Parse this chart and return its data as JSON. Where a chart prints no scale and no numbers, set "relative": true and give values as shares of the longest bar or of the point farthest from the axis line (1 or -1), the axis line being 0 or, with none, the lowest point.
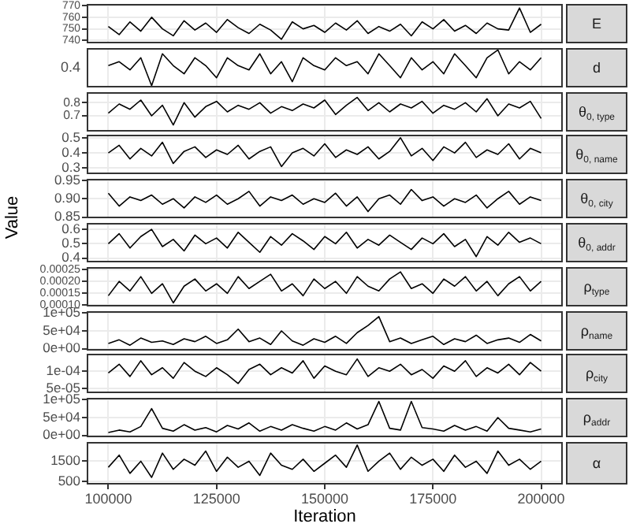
{
  "chart_data": [
    {
      "type": "line",
      "y2label": "E",
      "color": "#000000",
      "x": [
        100000,
        102500,
        105000,
        107500,
        110000,
        112500,
        115000,
        117500,
        120000,
        122500,
        125000,
        127500,
        130000,
        132500,
        135000,
        137500,
        140000,
        142500,
        145000,
        147500,
        150000,
        152500,
        155000,
        157500,
        160000,
        162500,
        165000,
        167500,
        170000,
        172500,
        175000,
        177500,
        180000,
        182500,
        185000,
        187500,
        190000,
        192500,
        195000,
        197500,
        200000
      ],
      "values": [
        752,
        745,
        756,
        748,
        760,
        750,
        744,
        757,
        749,
        755,
        747,
        758,
        751,
        746,
        754,
        749,
        741,
        756,
        750,
        753,
        747,
        755,
        749,
        757,
        746,
        752,
        748,
        754,
        744,
        756,
        750,
        758,
        748,
        753,
        746,
        755,
        750,
        749,
        768,
        747,
        754
      ],
      "xlim": [
        95000,
        205000
      ],
      "xticks": [
        100000,
        125000,
        150000,
        175000,
        200000
      ],
      "ylim": [
        737.5,
        771.5
      ],
      "yticks": [
        740,
        750,
        760,
        770
      ],
      "grid": true,
      "tick_labels": "y"
    },
    {
      "type": "line",
      "y2label": "d",
      "color": "#000000",
      "x": [
        100000,
        102500,
        105000,
        107500,
        110000,
        112500,
        115000,
        117500,
        120000,
        122500,
        125000,
        127500,
        130000,
        132500,
        135000,
        137500,
        140000,
        142500,
        145000,
        147500,
        150000,
        152500,
        155000,
        157500,
        160000,
        162500,
        165000,
        167500,
        170000,
        172500,
        175000,
        177500,
        180000,
        182500,
        185000,
        187500,
        190000,
        192500,
        195000,
        197500,
        200000
      ],
      "values": [
        0.56,
        0.67,
        0.44,
        0.78,
        0,
        0.89,
        0.56,
        0.33,
        0.78,
        0.56,
        0.22,
        0.78,
        0.56,
        0.44,
        0.89,
        0.33,
        0.67,
        0.11,
        0.78,
        0.56,
        0.44,
        0.78,
        0.56,
        0.67,
        0.33,
        0.89,
        0.56,
        0.22,
        0.78,
        0.44,
        0.67,
        0.33,
        0.89,
        0.56,
        0.22,
        0.78,
        1,
        0.33,
        0.67,
        0.44,
        0.78
      ],
      "relative": true,
      "annotations": [
        "0.4"
      ],
      "xlim": [
        95000,
        205000
      ],
      "xticks": [
        100000,
        125000,
        150000,
        175000,
        200000
      ],
      "grid": true,
      "tick_labels": "y"
    },
    {
      "type": "line",
      "y2label": "θ$_{0, type}$",
      "color": "#000000",
      "x": [
        100000,
        102500,
        105000,
        107500,
        110000,
        112500,
        115000,
        117500,
        120000,
        122500,
        125000,
        127500,
        130000,
        132500,
        135000,
        137500,
        140000,
        142500,
        145000,
        147500,
        150000,
        152500,
        155000,
        157500,
        160000,
        162500,
        165000,
        167500,
        170000,
        172500,
        175000,
        177500,
        180000,
        182500,
        185000,
        187500,
        190000,
        192500,
        195000,
        197500,
        200000
      ],
      "values": [
        0.72,
        0.79,
        0.75,
        0.82,
        0.7,
        0.78,
        0.63,
        0.8,
        0.69,
        0.77,
        0.81,
        0.73,
        0.78,
        0.75,
        0.8,
        0.72,
        0.77,
        0.74,
        0.79,
        0.76,
        0.82,
        0.71,
        0.78,
        0.84,
        0.74,
        0.8,
        0.73,
        0.79,
        0.76,
        0.81,
        0.72,
        0.78,
        0.75,
        0.8,
        0.73,
        0.83,
        0.7,
        0.79,
        0.76,
        0.81,
        0.68
      ],
      "xlim": [
        95000,
        205000
      ],
      "xticks": [
        100000,
        125000,
        150000,
        175000,
        200000
      ],
      "ylim": [
        0.58,
        0.88
      ],
      "yticks": [
        0.7,
        0.8
      ],
      "grid": true,
      "tick_labels": "y"
    },
    {
      "type": "line",
      "y2label": "θ$_{0, name}$",
      "color": "#000000",
      "x": [
        100000,
        102500,
        105000,
        107500,
        110000,
        112500,
        115000,
        117500,
        120000,
        122500,
        125000,
        127500,
        130000,
        132500,
        135000,
        137500,
        140000,
        142500,
        145000,
        147500,
        150000,
        152500,
        155000,
        157500,
        160000,
        162500,
        165000,
        167500,
        170000,
        172500,
        175000,
        177500,
        180000,
        182500,
        185000,
        187500,
        190000,
        192500,
        195000,
        197500,
        200000
      ],
      "values": [
        0.4,
        0.45,
        0.36,
        0.43,
        0.38,
        0.47,
        0.33,
        0.41,
        0.44,
        0.37,
        0.42,
        0.39,
        0.45,
        0.36,
        0.41,
        0.44,
        0.31,
        0.4,
        0.43,
        0.38,
        0.46,
        0.37,
        0.42,
        0.39,
        0.44,
        0.36,
        0.41,
        0.5,
        0.38,
        0.43,
        0.35,
        0.44,
        0.4,
        0.47,
        0.37,
        0.42,
        0.39,
        0.46,
        0.36,
        0.43,
        0.4
      ],
      "xlim": [
        95000,
        205000
      ],
      "xticks": [
        100000,
        125000,
        150000,
        175000,
        200000
      ],
      "ylim": [
        0.26,
        0.52
      ],
      "yticks": [
        0.3,
        0.4,
        0.5
      ],
      "grid": true,
      "tick_labels": "y"
    },
    {
      "type": "line",
      "y2label": "θ$_{0, city}$",
      "color": "#000000",
      "x": [
        100000,
        102500,
        105000,
        107500,
        110000,
        112500,
        115000,
        117500,
        120000,
        122500,
        125000,
        127500,
        130000,
        132500,
        135000,
        137500,
        140000,
        142500,
        145000,
        147500,
        150000,
        152500,
        155000,
        157500,
        160000,
        162500,
        165000,
        167500,
        170000,
        172500,
        175000,
        177500,
        180000,
        182500,
        185000,
        187500,
        190000,
        192500,
        195000,
        197500,
        200000
      ],
      "values": [
        0.915,
        0.88,
        0.905,
        0.895,
        0.91,
        0.885,
        0.9,
        0.875,
        0.905,
        0.89,
        0.91,
        0.885,
        0.9,
        0.92,
        0.88,
        0.905,
        0.895,
        0.91,
        0.885,
        0.9,
        0.89,
        0.915,
        0.88,
        0.905,
        0.865,
        0.9,
        0.91,
        0.885,
        0.925,
        0.895,
        0.905,
        0.88,
        0.9,
        0.89,
        0.91,
        0.875,
        0.9,
        0.92,
        0.885,
        0.905,
        0.895
      ],
      "xlim": [
        95000,
        205000
      ],
      "xticks": [
        100000,
        125000,
        150000,
        175000,
        200000
      ],
      "ylim": [
        0.847,
        0.954
      ],
      "yticks": [
        {
          "value": 0.85,
          "label": "0.85"
        },
        {
          "value": 0.9,
          "label": "0.90"
        },
        {
          "value": 0.95,
          "label": "0.95"
        }
      ],
      "grid": true,
      "tick_labels": "y"
    },
    {
      "type": "line",
      "y2label": "θ$_{0, addr}$",
      "ylabel": "Value",
      "color": "#000000",
      "x": [
        100000,
        102500,
        105000,
        107500,
        110000,
        112500,
        115000,
        117500,
        120000,
        122500,
        125000,
        127500,
        130000,
        132500,
        135000,
        137500,
        140000,
        142500,
        145000,
        147500,
        150000,
        152500,
        155000,
        157500,
        160000,
        162500,
        165000,
        167500,
        170000,
        172500,
        175000,
        177500,
        180000,
        182500,
        185000,
        187500,
        190000,
        192500,
        195000,
        197500,
        200000
      ],
      "values": [
        0.5,
        0.57,
        0.47,
        0.55,
        0.6,
        0.48,
        0.53,
        0.45,
        0.56,
        0.5,
        0.54,
        0.47,
        0.58,
        0.51,
        0.44,
        0.55,
        0.49,
        0.57,
        0.52,
        0.46,
        0.55,
        0.5,
        0.58,
        0.47,
        0.53,
        0.49,
        0.56,
        0.51,
        0.46,
        0.54,
        0.5,
        0.57,
        0.48,
        0.53,
        0.41,
        0.55,
        0.49,
        0.58,
        0.51,
        0.54,
        0.5
      ],
      "xlim": [
        95000,
        205000
      ],
      "xticks": [
        100000,
        125000,
        150000,
        175000,
        200000
      ],
      "ylim": [
        0.37,
        0.645
      ],
      "yticks": [
        0.4,
        0.5,
        0.6
      ],
      "grid": true,
      "tick_labels": "y"
    },
    {
      "type": "line",
      "y2label": "ρ$_{type}$",
      "color": "#000000",
      "x": [
        100000,
        102500,
        105000,
        107500,
        110000,
        112500,
        115000,
        117500,
        120000,
        122500,
        125000,
        127500,
        130000,
        132500,
        135000,
        137500,
        140000,
        142500,
        145000,
        147500,
        150000,
        152500,
        155000,
        157500,
        160000,
        162500,
        165000,
        167500,
        170000,
        172500,
        175000,
        177500,
        180000,
        182500,
        185000,
        187500,
        190000,
        192500,
        195000,
        197500,
        200000
      ],
      "values": [
        0.00014,
        0.0002,
        0.00016,
        0.00022,
        0.00015,
        0.00019,
        0.00011,
        0.00018,
        0.00021,
        0.00016,
        0.00019,
        0.00015,
        0.00022,
        0.00017,
        0.0002,
        0.00023,
        0.00016,
        0.00019,
        0.00014,
        0.00021,
        0.00017,
        0.0002,
        0.00015,
        0.00022,
        0.00018,
        0.00016,
        0.00021,
        0.00024,
        0.00017,
        0.00019,
        0.00015,
        0.00021,
        0.00018,
        0.00022,
        0.00016,
        0.0002,
        0.00014,
        0.00019,
        0.00022,
        0.00016,
        0.0002
      ],
      "xlim": [
        95000,
        205000
      ],
      "xticks": [
        100000,
        125000,
        150000,
        175000,
        200000
      ],
      "ylim": [
        9.5e-05,
        0.00026
      ],
      "yticks": [
        {
          "value": 0.0001,
          "label": "0.00010"
        },
        {
          "value": 0.00015,
          "label": "0.00015"
        },
        {
          "value": 0.0002,
          "label": "0.00020"
        },
        {
          "value": 0.00025,
          "label": "0.00025"
        }
      ],
      "grid": true,
      "tick_labels": "y"
    },
    {
      "type": "line",
      "y2label": "ρ$_{name}$",
      "color": "#000000",
      "x": [
        100000,
        102500,
        105000,
        107500,
        110000,
        112500,
        115000,
        117500,
        120000,
        122500,
        125000,
        127500,
        130000,
        132500,
        135000,
        137500,
        140000,
        142500,
        145000,
        147500,
        150000,
        152500,
        155000,
        157500,
        160000,
        162500,
        165000,
        167500,
        170000,
        172500,
        175000,
        177500,
        180000,
        182500,
        185000,
        187500,
        190000,
        192500,
        195000,
        197500,
        200000
      ],
      "values": [
        15000,
        25000,
        10000,
        30000,
        18000,
        22000,
        12000,
        28000,
        20000,
        35000,
        15000,
        25000,
        55000,
        20000,
        30000,
        12000,
        50000,
        22000,
        10000,
        28000,
        18000,
        35000,
        15000,
        45000,
        65000,
        90000,
        20000,
        30000,
        15000,
        25000,
        35000,
        12000,
        28000,
        20000,
        38000,
        15000,
        25000,
        30000,
        18000,
        40000,
        22000
      ],
      "xlim": [
        95000,
        205000
      ],
      "xticks": [
        100000,
        125000,
        150000,
        175000,
        200000
      ],
      "ylim": [
        -5000,
        105000
      ],
      "yticks": [
        {
          "value": 0,
          "label": "0e+00"
        },
        {
          "value": 50000,
          "label": "5e+04"
        },
        {
          "value": 100000,
          "label": "1e+05"
        }
      ],
      "grid": true,
      "tick_labels": "y"
    },
    {
      "type": "line",
      "y2label": "ρ$_{city}$",
      "color": "#000000",
      "x": [
        100000,
        102500,
        105000,
        107500,
        110000,
        112500,
        115000,
        117500,
        120000,
        122500,
        125000,
        127500,
        130000,
        132500,
        135000,
        137500,
        140000,
        142500,
        145000,
        147500,
        150000,
        152500,
        155000,
        157500,
        160000,
        162500,
        165000,
        167500,
        170000,
        172500,
        175000,
        177500,
        180000,
        182500,
        185000,
        187500,
        190000,
        192500,
        195000,
        197500,
        200000
      ],
      "values": [
        9.5e-05,
        0.00012,
        8.5e-05,
        0.00013,
        9e-05,
        0.00011,
        8e-05,
        0.000125,
        0.0001,
        8.5e-05,
        0.00011,
        9e-05,
        6.5e-05,
        0.000105,
        0.00012,
        9e-05,
        0.00011,
        9.5e-05,
        0.00013,
        8e-05,
        0.000115,
        0.0001,
        9e-05,
        0.000135,
        8.5e-05,
        0.00011,
        0.0001,
        0.00012,
        9e-05,
        0.000105,
        8e-05,
        0.000115,
        0.0001,
        0.00013,
        8.5e-05,
        0.00011,
        9.5e-05,
        0.00012,
        9e-05,
        0.000125,
        0.0001
      ],
      "xlim": [
        95000,
        205000
      ],
      "xticks": [
        100000,
        125000,
        150000,
        175000,
        200000
      ],
      "ylim": [
        3.75e-05,
        0.00015
      ],
      "yticks": [
        {
          "value": 5e-05,
          "label": "5e-05"
        },
        {
          "value": 0.0001,
          "label": "1e-04"
        }
      ],
      "grid": true,
      "tick_labels": "y"
    },
    {
      "type": "line",
      "y2label": "ρ$_{addr}$",
      "color": "#000000",
      "x": [
        100000,
        102500,
        105000,
        107500,
        110000,
        112500,
        115000,
        117500,
        120000,
        122500,
        125000,
        127500,
        130000,
        132500,
        135000,
        137500,
        140000,
        142500,
        145000,
        147500,
        150000,
        152500,
        155000,
        157500,
        160000,
        162500,
        165000,
        167500,
        170000,
        172500,
        175000,
        177500,
        180000,
        182500,
        185000,
        187500,
        190000,
        192500,
        195000,
        197500,
        200000
      ],
      "values": [
        8000,
        15000,
        10000,
        25000,
        75000,
        20000,
        12000,
        30000,
        15000,
        22000,
        10000,
        28000,
        18000,
        35000,
        12000,
        25000,
        15000,
        30000,
        20000,
        12000,
        25000,
        15000,
        35000,
        18000,
        30000,
        95000,
        20000,
        15000,
        95000,
        22000,
        18000,
        12000,
        28000,
        15000,
        25000,
        12000,
        50000,
        20000,
        15000,
        10000,
        18000
      ],
      "xlim": [
        95000,
        205000
      ],
      "xticks": [
        100000,
        125000,
        150000,
        175000,
        200000
      ],
      "ylim": [
        -5000,
        105000
      ],
      "yticks": [
        {
          "value": 0,
          "label": "0e+00"
        },
        {
          "value": 50000,
          "label": "5e+04"
        },
        {
          "value": 100000,
          "label": "1e+05"
        }
      ],
      "grid": true,
      "tick_labels": "y"
    },
    {
      "type": "line",
      "y2label": "α",
      "xlabel": "Iteration",
      "color": "#000000",
      "x": [
        100000,
        102500,
        105000,
        107500,
        110000,
        112500,
        115000,
        117500,
        120000,
        122500,
        125000,
        127500,
        130000,
        132500,
        135000,
        137500,
        140000,
        142500,
        145000,
        147500,
        150000,
        152500,
        155000,
        157500,
        160000,
        162500,
        165000,
        167500,
        170000,
        172500,
        175000,
        177500,
        180000,
        182500,
        185000,
        187500,
        190000,
        192500,
        195000,
        197500,
        200000
      ],
      "values": [
        1200,
        1800,
        900,
        1500,
        700,
        1900,
        1100,
        1600,
        1300,
        2000,
        1000,
        1700,
        1200,
        1500,
        800,
        1900,
        1300,
        1100,
        1600,
        1000,
        1400,
        1800,
        1200,
        2300,
        1000,
        1500,
        1900,
        1100,
        1700,
        1300,
        1600,
        1000,
        1800,
        1200,
        1500,
        900,
        2000,
        1300,
        1600,
        1100,
        1500
      ],
      "xlim": [
        95000,
        205000
      ],
      "xticks": [
        100000,
        125000,
        150000,
        175000,
        200000
      ],
      "ylim": [
        350,
        2450
      ],
      "yticks": [
        500,
        1500
      ],
      "grid": true
    }
  ]
}
